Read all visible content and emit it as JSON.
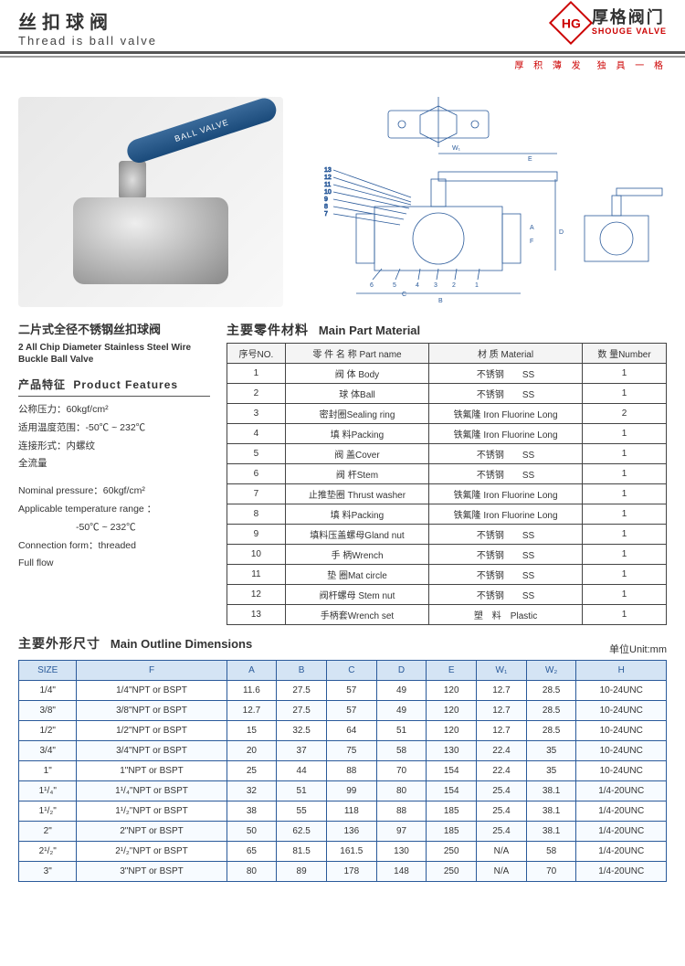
{
  "header": {
    "title_cn": "丝扣球阀",
    "title_en": "Thread is ball valve",
    "logo_mark": "HG",
    "logo_cn": "厚格阀门",
    "logo_en": "SHOUGE VALVE",
    "tagline": "厚 积 薄 发　独 具 一 格"
  },
  "handle_text": "BALL VALVE",
  "product": {
    "name_cn": "二片式全径不锈钢丝扣球阀",
    "name_en": "2 All Chip Diameter Stainless Steel Wire Buckle Ball Valve",
    "feat_hdr_cn": "产品特征",
    "feat_hdr_en": "Product Features",
    "feat_cn": [
      "公称压力：60kgf/cm²",
      "适用温度范围：-50℃ ~ 232℃",
      "连接形式：内螺纹",
      "全流量"
    ],
    "feat_en": [
      "Nominal pressure：60kgf/cm²",
      "Applicable temperature range ：",
      "　　　　　　-50℃ ~ 232℃",
      "Connection form：threaded",
      "Full flow"
    ]
  },
  "parts": {
    "title_cn": "主要零件材料",
    "title_en": "Main Part Material",
    "headers": [
      "序号NO.",
      "零 件 名 称  Part name",
      "材  质 Material",
      "数 量Number"
    ],
    "rows": [
      [
        "1",
        "阀 体 Body",
        "不锈钢　　SS",
        "1"
      ],
      [
        "2",
        "球  体Ball",
        "不锈钢　　SS",
        "1"
      ],
      [
        "3",
        "密封圈Sealing ring",
        "铁氟隆 Iron Fluorine Long",
        "2"
      ],
      [
        "4",
        "填  料Packing",
        "铁氟隆 Iron Fluorine Long",
        "1"
      ],
      [
        "5",
        "阀  盖Cover",
        "不锈钢　　SS",
        "1"
      ],
      [
        "6",
        "阀  杆Stem",
        "不锈钢　　SS",
        "1"
      ],
      [
        "7",
        "止推垫圈 Thrust washer",
        "铁氟隆 Iron Fluorine Long",
        "1"
      ],
      [
        "8",
        "填  料Packing",
        "铁氟隆 Iron Fluorine Long",
        "1"
      ],
      [
        "9",
        "填料压盖螺母Gland nut",
        "不锈钢　　SS",
        "1"
      ],
      [
        "10",
        "手  柄Wrench",
        "不锈钢　　SS",
        "1"
      ],
      [
        "11",
        "垫  圈Mat circle",
        "不锈钢　　SS",
        "1"
      ],
      [
        "12",
        "阀杆螺母 Stem nut",
        "不锈钢　　SS",
        "1"
      ],
      [
        "13",
        "手柄套Wrench set",
        "塑　料　Plastic",
        "1"
      ]
    ]
  },
  "dimensions": {
    "title_cn": "主要外形尺寸",
    "title_en": "Main Outline Dimensions",
    "unit": "单位Unit:mm",
    "headers": [
      "SIZE",
      "F",
      "A",
      "B",
      "C",
      "D",
      "E",
      "W₁",
      "W₂",
      "H"
    ],
    "rows": [
      [
        "1/4\"",
        "1/4\"NPT or BSPT",
        "11.6",
        "27.5",
        "57",
        "49",
        "120",
        "12.7",
        "28.5",
        "10-24UNC"
      ],
      [
        "3/8\"",
        "3/8\"NPT or BSPT",
        "12.7",
        "27.5",
        "57",
        "49",
        "120",
        "12.7",
        "28.5",
        "10-24UNC"
      ],
      [
        "1/2\"",
        "1/2\"NPT or BSPT",
        "15",
        "32.5",
        "64",
        "51",
        "120",
        "12.7",
        "28.5",
        "10-24UNC"
      ],
      [
        "3/4\"",
        "3/4\"NPT or BSPT",
        "20",
        "37",
        "75",
        "58",
        "130",
        "22.4",
        "35",
        "10-24UNC"
      ],
      [
        "1\"",
        "1\"NPT or BSPT",
        "25",
        "44",
        "88",
        "70",
        "154",
        "22.4",
        "35",
        "10-24UNC"
      ],
      [
        "1¹/₄\"",
        "1¹/₄\"NPT or BSPT",
        "32",
        "51",
        "99",
        "80",
        "154",
        "25.4",
        "38.1",
        "1/4-20UNC"
      ],
      [
        "1¹/₂\"",
        "1¹/₂\"NPT or BSPT",
        "38",
        "55",
        "118",
        "88",
        "185",
        "25.4",
        "38.1",
        "1/4-20UNC"
      ],
      [
        "2\"",
        "2\"NPT or BSPT",
        "50",
        "62.5",
        "136",
        "97",
        "185",
        "25.4",
        "38.1",
        "1/4-20UNC"
      ],
      [
        "2¹/₂\"",
        "2¹/₂\"NPT or BSPT",
        "65",
        "81.5",
        "161.5",
        "130",
        "250",
        "N/A",
        "58",
        "1/4-20UNC"
      ],
      [
        "3\"",
        "3\"NPT or BSPT",
        "80",
        "89",
        "178",
        "148",
        "250",
        "N/A",
        "70",
        "1/4-20UNC"
      ]
    ],
    "col_widths": [
      "58",
      "150",
      "50",
      "50",
      "50",
      "50",
      "50",
      "50",
      "50",
      "90"
    ]
  },
  "colors": {
    "brand_red": "#c00000",
    "diagram_blue": "#2a5a9a",
    "table_header_bg": "#d4e4f4",
    "border_dark": "#444444"
  }
}
